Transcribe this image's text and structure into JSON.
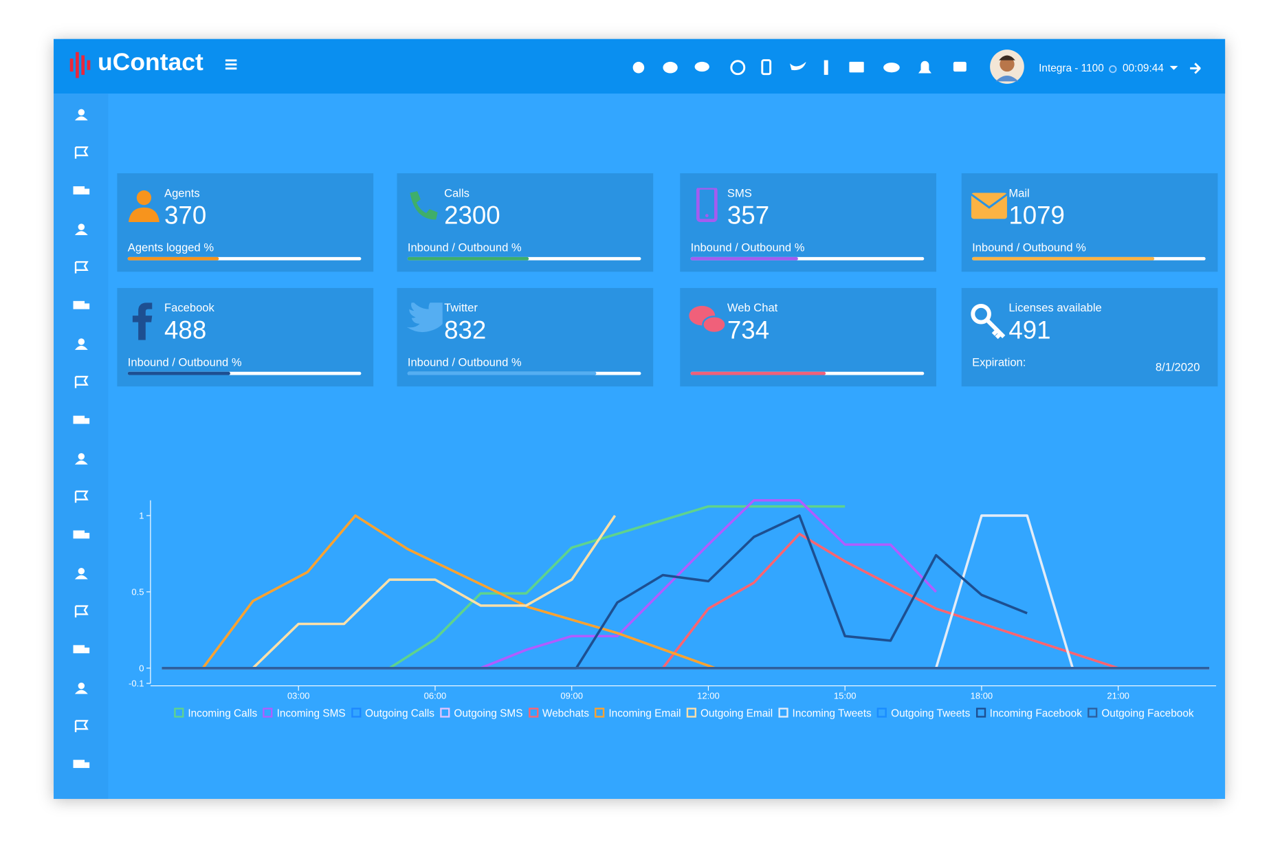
{
  "header": {
    "brand": "uContact",
    "user": "Integra - 1100",
    "timer": "00:09:44"
  },
  "cards": [
    {
      "title": "Agents",
      "value": 370,
      "label": "Agents logged %",
      "progress": 39,
      "color": "#f7941d"
    },
    {
      "title": "Calls",
      "value": 2300,
      "label": "Inbound / Outbound %",
      "progress": 52,
      "color": "#3fae6a"
    },
    {
      "title": "SMS",
      "value": 357,
      "label": "Inbound / Outbound %",
      "progress": 46,
      "color": "#a45cf0"
    },
    {
      "title": "Mail",
      "value": 1079,
      "label": "Inbound / Outbound %",
      "progress": 78,
      "color": "#fbb344"
    },
    {
      "title": "Facebook",
      "value": 488,
      "label": "Inbound / Outbound %",
      "progress": 44,
      "color": "#1d4f91"
    },
    {
      "title": "Twitter",
      "value": 832,
      "label": "Inbound / Outbound %",
      "progress": 81,
      "color": "#55aef2"
    },
    {
      "title": "Web Chat",
      "value": 734,
      "progress": 58,
      "color": "#f0607a"
    },
    {
      "title": "Licenses available",
      "value": 491,
      "label": "Expiration:",
      "date": "8/1/2020"
    }
  ],
  "chart_data": {
    "type": "line",
    "xlim": [
      -0.25,
      23.15
    ],
    "ylim": [
      -0.1,
      1.1
    ],
    "xticks": [
      {
        "value": 3,
        "label": "03:00"
      },
      {
        "value": 6,
        "label": "06:00"
      },
      {
        "value": 9,
        "label": "09:00"
      },
      {
        "value": 12,
        "label": "12:00"
      },
      {
        "value": 15,
        "label": "15:00"
      },
      {
        "value": 18,
        "label": "18:00"
      },
      {
        "value": 21,
        "label": "21:00"
      }
    ],
    "yticks": [
      -0.1,
      0,
      0.5,
      1
    ],
    "series": [
      {
        "name": "Incoming Calls",
        "color": "#5fd38d",
        "x": [
          0,
          5,
          6,
          7,
          8,
          9,
          10,
          12,
          15
        ],
        "values": [
          0,
          0,
          0.19,
          0.49,
          0.49,
          0.79,
          0.88,
          1.06,
          1.06
        ]
      },
      {
        "name": "Incoming SMS",
        "color": "#b15cff",
        "x": [
          0,
          7,
          8,
          9,
          10,
          12,
          13,
          14,
          15,
          16,
          17
        ],
        "values": [
          0,
          0,
          0.12,
          0.21,
          0.21,
          0.81,
          1.1,
          1.1,
          0.81,
          0.81,
          0.5
        ]
      },
      {
        "name": "Outgoing Calls",
        "color": "#1e88ff",
        "x": [
          0,
          23
        ],
        "values": [
          0,
          0
        ]
      },
      {
        "name": "Outgoing SMS",
        "color": "#e0c3ff",
        "x": [
          0,
          23
        ],
        "values": [
          0,
          0
        ]
      },
      {
        "name": "Webchats",
        "color": "#ff6470",
        "x": [
          0,
          11,
          12,
          13,
          14,
          15,
          17,
          21,
          23
        ],
        "values": [
          0,
          0,
          0.39,
          0.56,
          0.88,
          0.7,
          0.39,
          0,
          0
        ]
      },
      {
        "name": "Incoming Email",
        "color": "#ffa22e",
        "x": [
          0,
          0.9,
          2,
          3.2,
          4.25,
          5.4,
          8.05,
          10,
          12.15,
          23
        ],
        "values": [
          0,
          0,
          0.44,
          0.63,
          1.0,
          0.78,
          0.4,
          0.23,
          0,
          0
        ]
      },
      {
        "name": "Outgoing Email",
        "color": "#ffe0a8",
        "x": [
          0,
          2,
          3,
          4,
          5,
          6,
          7,
          8,
          9,
          9.95
        ],
        "values": [
          0,
          0,
          0.29,
          0.29,
          0.58,
          0.58,
          0.41,
          0.41,
          0.58,
          1.0
        ]
      },
      {
        "name": "Incoming Tweets",
        "color": "#e3ecf7",
        "x": [
          0,
          17,
          18,
          19,
          20,
          23
        ],
        "values": [
          0,
          0,
          1,
          1,
          0,
          0
        ]
      },
      {
        "name": "Outgoing Tweets",
        "color": "#1a8cff",
        "x": [
          0,
          23
        ],
        "values": [
          0,
          0
        ]
      },
      {
        "name": "Incoming Facebook",
        "color": "#1d4f91",
        "x": [
          0,
          9.1,
          10,
          11,
          12,
          13,
          14,
          15,
          16,
          17,
          18,
          19
        ],
        "values": [
          0,
          0,
          0.43,
          0.61,
          0.57,
          0.86,
          1.0,
          0.21,
          0.18,
          0.74,
          0.48,
          0.36
        ]
      },
      {
        "name": "Outgoing Facebook",
        "color": "#2d5f9e",
        "x": [
          0,
          23
        ],
        "values": [
          0,
          0
        ]
      }
    ]
  }
}
